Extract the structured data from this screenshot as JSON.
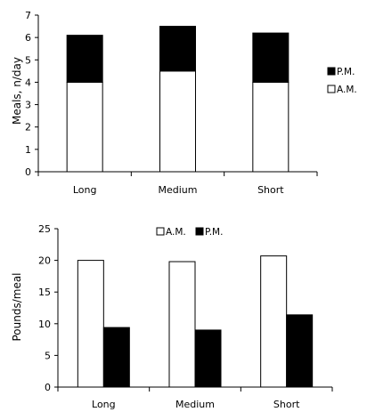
{
  "chart_data": [
    {
      "type": "bar",
      "stacked": true,
      "categories": [
        "Long",
        "Medium",
        "Short"
      ],
      "series": [
        {
          "name": "A.M.",
          "values": [
            4.0,
            4.5,
            4.0
          ],
          "color": "#ffffff"
        },
        {
          "name": "P.M.",
          "values": [
            2.1,
            2.0,
            2.2
          ],
          "color": "#000000"
        }
      ],
      "title": "",
      "xlabel": "",
      "ylabel": "Meals, n/day",
      "ylim": [
        0,
        7
      ],
      "yticks": [
        "0",
        "1",
        "2",
        "3",
        "4",
        "5",
        "6",
        "7"
      ],
      "grid": false,
      "legend": {
        "placement": "right",
        "items": [
          "P.M.",
          "A.M."
        ]
      }
    },
    {
      "type": "bar",
      "stacked": false,
      "categories": [
        "Long",
        "Medium",
        "Short"
      ],
      "series": [
        {
          "name": "A.M.",
          "values": [
            20.0,
            19.8,
            20.7
          ],
          "color": "#ffffff"
        },
        {
          "name": "P.M.",
          "values": [
            9.4,
            9.0,
            11.4
          ],
          "color": "#000000"
        }
      ],
      "title": "",
      "xlabel": "",
      "ylabel": "Pounds/meal",
      "ylim": [
        0,
        25
      ],
      "yticks": [
        "0",
        "5",
        "10",
        "15",
        "20",
        "25"
      ],
      "grid": false,
      "legend": {
        "placement": "top",
        "items": [
          "A.M.",
          "P.M."
        ]
      }
    }
  ]
}
